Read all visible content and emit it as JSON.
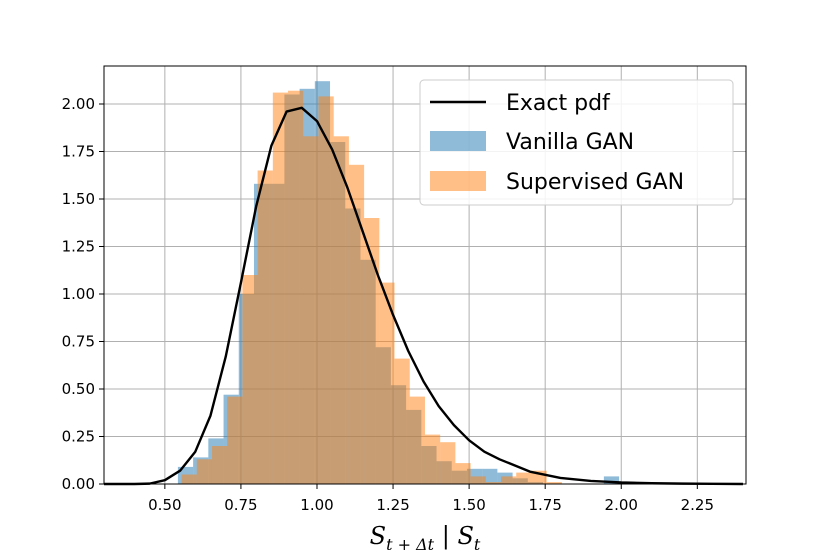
{
  "chart_data": {
    "type": "histogram",
    "xlabel": "S_{t+Δt} | S_t",
    "ylabel": "",
    "title": "",
    "xlim": [
      0.3,
      2.41
    ],
    "ylim": [
      0,
      2.2
    ],
    "grid": true,
    "legend_placement": "top-right",
    "x_ticks": [
      0.5,
      0.75,
      1.0,
      1.25,
      1.5,
      1.75,
      2.0,
      2.25
    ],
    "x_tick_labels": [
      "0.50",
      "0.75",
      "1.00",
      "1.25",
      "1.50",
      "1.75",
      "2.00",
      "2.25"
    ],
    "y_ticks": [
      0,
      0.25,
      0.5,
      0.75,
      1.0,
      1.25,
      1.5,
      1.75,
      2.0
    ],
    "y_tick_labels": [
      "0.00",
      "0.25",
      "0.50",
      "0.75",
      "1.00",
      "1.25",
      "1.50",
      "1.75",
      "2.00"
    ],
    "series": [
      {
        "name": "Exact pdf",
        "kind": "line",
        "color": "#000000",
        "x": [
          0.3,
          0.4,
          0.45,
          0.5,
          0.55,
          0.6,
          0.65,
          0.7,
          0.75,
          0.8,
          0.85,
          0.9,
          0.95,
          1.0,
          1.05,
          1.1,
          1.15,
          1.2,
          1.25,
          1.3,
          1.35,
          1.4,
          1.45,
          1.5,
          1.55,
          1.6,
          1.7,
          1.8,
          1.9,
          2.0,
          2.1,
          2.2,
          2.3,
          2.4
        ],
        "y": [
          0.0,
          0.0,
          0.002,
          0.02,
          0.07,
          0.17,
          0.36,
          0.67,
          1.06,
          1.46,
          1.78,
          1.96,
          1.98,
          1.91,
          1.76,
          1.56,
          1.33,
          1.1,
          0.89,
          0.7,
          0.54,
          0.41,
          0.31,
          0.23,
          0.17,
          0.13,
          0.065,
          0.032,
          0.016,
          0.008,
          0.004,
          0.002,
          0.001,
          0.0
        ]
      },
      {
        "name": "Vanilla GAN",
        "kind": "histogram",
        "color": "#1f77b4",
        "opacity": 0.5,
        "bin_edges": [
          0.5429,
          0.5929,
          0.6429,
          0.6929,
          0.7429,
          0.7929,
          0.8429,
          0.8929,
          0.9429,
          0.9929,
          1.0429,
          1.0929,
          1.1429,
          1.1929,
          1.2429,
          1.2929,
          1.3429,
          1.3929,
          1.4429,
          1.4929,
          1.5429,
          1.5929,
          1.6429,
          1.6929,
          1.7429,
          1.7929,
          1.8429,
          1.8929,
          1.9429,
          1.9929,
          2.0429
        ],
        "values": [
          0.09,
          0.14,
          0.24,
          0.47,
          1.0,
          1.58,
          1.58,
          2.05,
          2.08,
          2.12,
          1.8,
          1.45,
          1.18,
          0.72,
          0.52,
          0.39,
          0.2,
          0.12,
          0.07,
          0.08,
          0.08,
          0.06,
          0.03,
          0.01,
          0.0,
          0.0,
          0.0,
          0.0,
          0.04,
          0.0
        ]
      },
      {
        "name": "Supervised GAN",
        "kind": "histogram",
        "color": "#ff7f0e",
        "opacity": 0.5,
        "bin_edges": [
          0.5549,
          0.6049,
          0.6549,
          0.7049,
          0.7549,
          0.8049,
          0.8549,
          0.9049,
          0.9549,
          1.0049,
          1.0549,
          1.1049,
          1.1549,
          1.2049,
          1.2549,
          1.3049,
          1.3549,
          1.4049,
          1.4549,
          1.5049,
          1.5549,
          1.6049,
          1.6549,
          1.7049,
          1.7549,
          1.8049
        ],
        "values": [
          0.05,
          0.13,
          0.2,
          0.46,
          1.1,
          1.65,
          2.06,
          2.07,
          1.83,
          2.04,
          1.83,
          1.68,
          1.4,
          1.06,
          0.66,
          0.46,
          0.26,
          0.22,
          0.11,
          0.04,
          0.01,
          0.04,
          0.06,
          0.07,
          0.01
        ]
      }
    ]
  }
}
